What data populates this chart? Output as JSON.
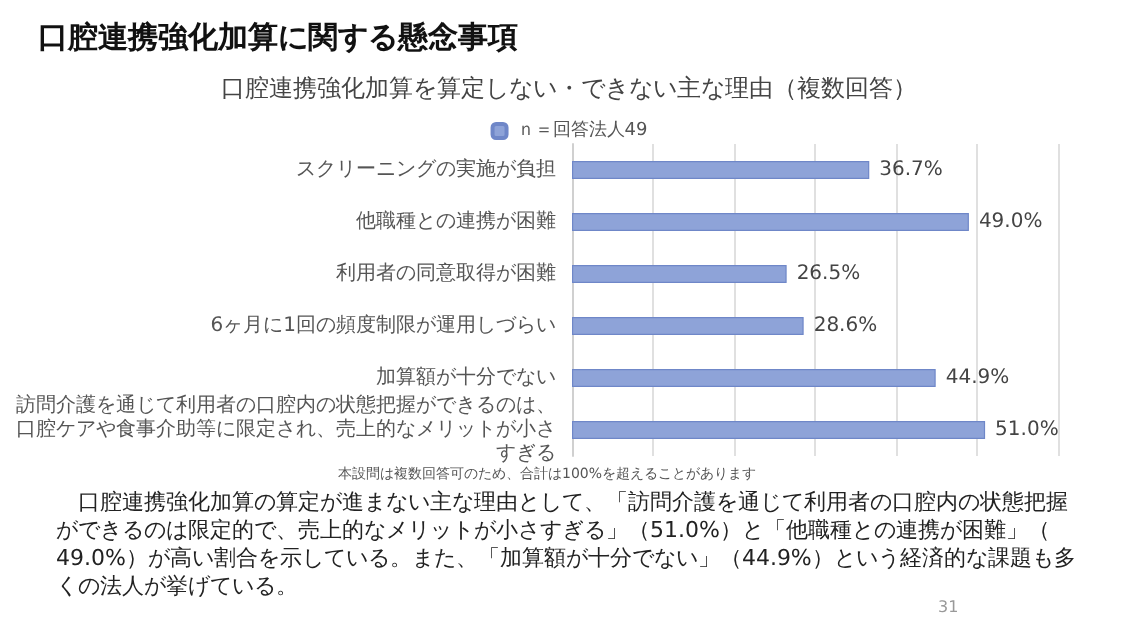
{
  "chart_data": {
    "type": "bar",
    "orientation": "horizontal",
    "title": "口腔連携強化加算に関する懸念事項",
    "subtitle": "口腔連携強化加算を算定しない・できない主な理由（複数回答）",
    "categories": [
      "スクリーニングの実施が負担",
      "他職種との連携が困難",
      "利用者の同意取得が困難",
      "6ヶ月に1回の頻度制限が運用しづらい",
      "加算額が十分でない",
      "訪問介護を通じて利用者の口腔内の状態把握ができるのは、口腔ケアや食事介助等に限定され、売上的なメリットが小さすぎる"
    ],
    "series": [
      {
        "name": "ｎ＝回答法人49",
        "color": "#8ea3d8",
        "values": [
          36.7,
          49.0,
          26.5,
          28.6,
          44.9,
          51.0
        ],
        "value_labels": [
          "36.7%",
          "49.0%",
          "26.5%",
          "28.6%",
          "44.9%",
          "51.0%"
        ]
      }
    ],
    "xlim": [
      0,
      60
    ],
    "xticks": [
      {
        "value": 0,
        "label": null
      },
      {
        "value": 10,
        "label": null
      },
      {
        "value": 20,
        "label": null
      },
      {
        "value": 30,
        "label": null
      },
      {
        "value": 40,
        "label": null
      },
      {
        "value": 50,
        "label": null
      },
      {
        "value": 60,
        "label": null
      }
    ],
    "grid": "x",
    "legend": "top",
    "annotations": [
      "本設問は複数回答可のため、合計は100%を超えることがあります",
      "　口腔連携強化加算の算定が進まない主な理由として、「訪問介護を通じて利用者の口腔内の状態把握ができるのは限定的で、売上的なメリットが小さすぎる」（51.0%）と「他職種との連携が困難」（49.0%）が高い割合を示している。また、「加算額が十分でない」（44.9%）という経済的な課題も多くの法人が挙げている。",
      "31"
    ]
  }
}
